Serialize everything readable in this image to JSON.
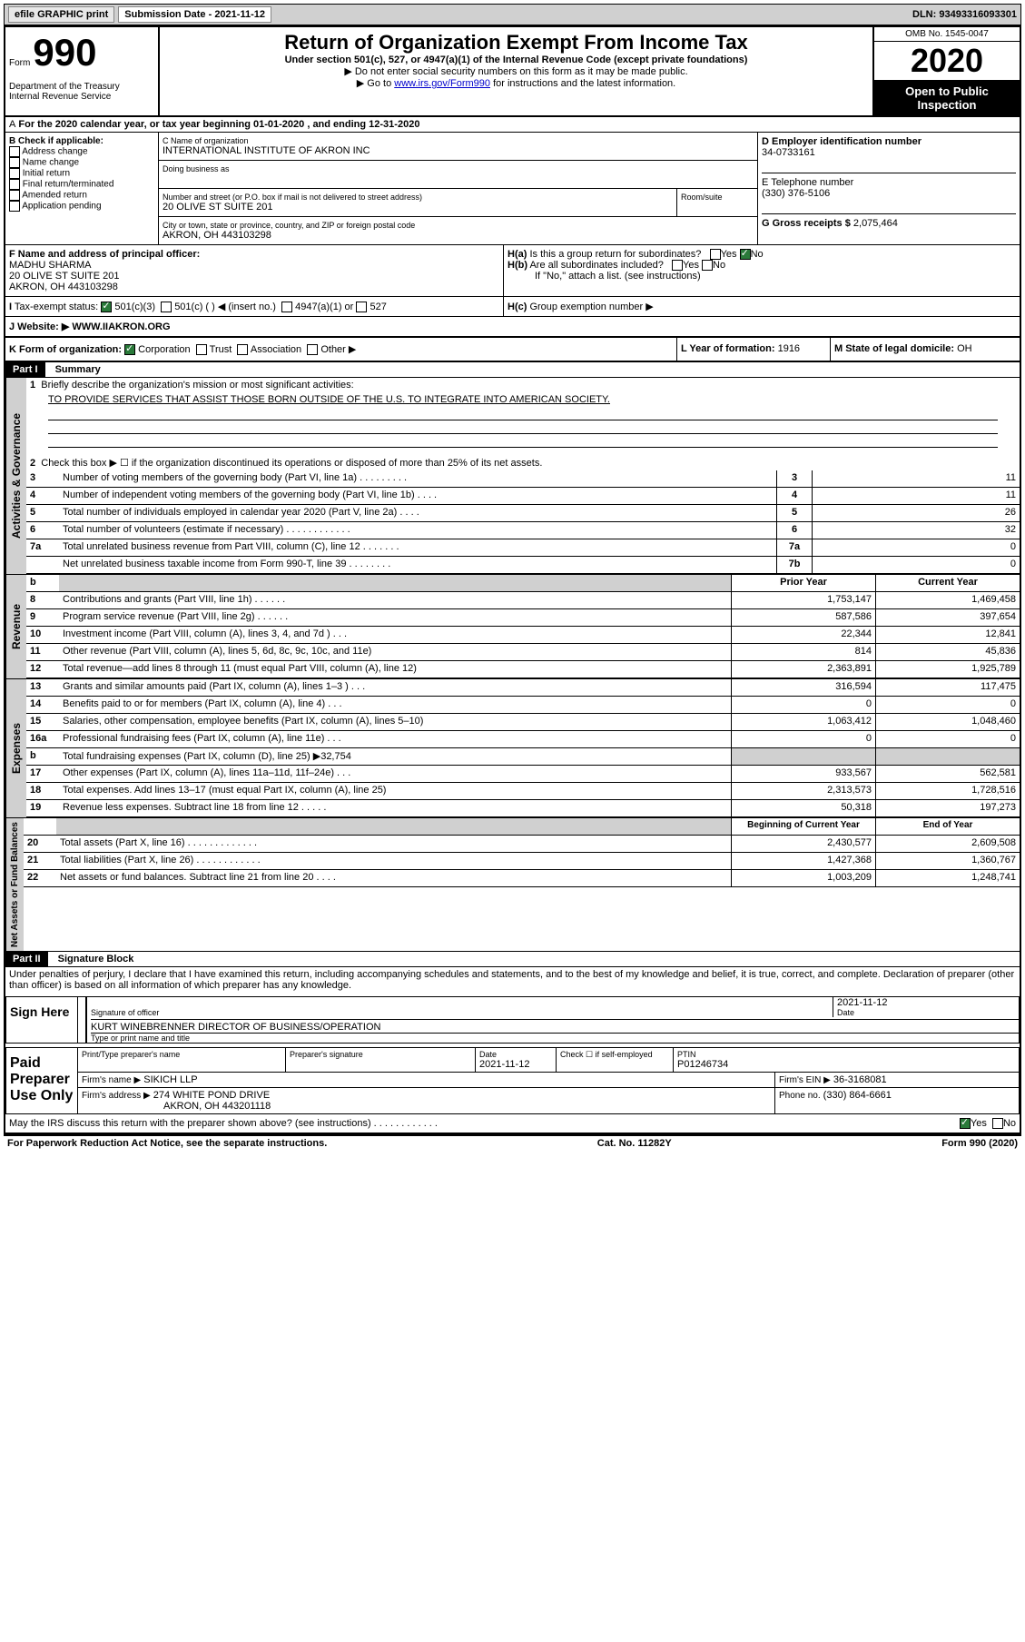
{
  "top_bar": {
    "efile": "efile GRAPHIC print",
    "submission_label": "Submission Date - 2021-11-12",
    "dln": "DLN: 93493316093301"
  },
  "header": {
    "form_label": "Form",
    "form_number": "990",
    "dept": "Department of the Treasury\nInternal Revenue Service",
    "title": "Return of Organization Exempt From Income Tax",
    "subtitle": "Under section 501(c), 527, or 4947(a)(1) of the Internal Revenue Code (except private foundations)",
    "note1": "▶ Do not enter social security numbers on this form as it may be made public.",
    "note2_prefix": "▶ Go to ",
    "note2_link": "www.irs.gov/Form990",
    "note2_suffix": " for instructions and the latest information.",
    "omb": "OMB No. 1545-0047",
    "year": "2020",
    "open": "Open to Public Inspection"
  },
  "period": "For the 2020 calendar year, or tax year beginning 01-01-2020    , and ending 12-31-2020",
  "section_b": {
    "title": "B Check if applicable:",
    "items": [
      "Address change",
      "Name change",
      "Initial return",
      "Final return/terminated",
      "Amended return",
      "Application pending"
    ]
  },
  "section_c": {
    "name_label": "C Name of organization",
    "name": "INTERNATIONAL INSTITUTE OF AKRON INC",
    "dba_label": "Doing business as",
    "street_label": "Number and street (or P.O. box if mail is not delivered to street address)",
    "street": "20 OLIVE ST SUITE 201",
    "room_label": "Room/suite",
    "city_label": "City or town, state or province, country, and ZIP or foreign postal code",
    "city": "AKRON, OH  443103298"
  },
  "section_d": {
    "label": "D Employer identification number",
    "value": "34-0733161"
  },
  "section_e": {
    "label": "E Telephone number",
    "value": "(330) 376-5106"
  },
  "section_g": {
    "label": "G Gross receipts $",
    "value": "2,075,464"
  },
  "section_f": {
    "label": "F Name and address of principal officer:",
    "name": "MADHU SHARMA",
    "addr1": "20 OLIVE ST SUITE 201",
    "addr2": "AKRON, OH  443103298"
  },
  "section_h": {
    "ha": "Is this a group return for subordinates?",
    "hb": "Are all subordinates included?",
    "hc_note": "If \"No,\" attach a list. (see instructions)",
    "hc": "Group exemption number ▶"
  },
  "section_i": {
    "label": "Tax-exempt status:",
    "opt1": "501(c)(3)",
    "opt2": "501(c) (   ) ◀ (insert no.)",
    "opt3": "4947(a)(1) or",
    "opt4": "527"
  },
  "section_j": {
    "label": "J   Website: ▶",
    "value": "WWW.IIAKRON.ORG"
  },
  "section_k": {
    "label": "K Form of organization:",
    "opts": [
      "Corporation",
      "Trust",
      "Association",
      "Other ▶"
    ]
  },
  "section_l": {
    "label": "L Year of formation:",
    "value": "1916"
  },
  "section_m": {
    "label": "M State of legal domicile:",
    "value": "OH"
  },
  "part1": {
    "header": "Part I",
    "title": "Summary",
    "vlabel": "Activities & Governance",
    "line1": "Briefly describe the organization's mission or most significant activities:",
    "mission": "TO PROVIDE SERVICES THAT ASSIST THOSE BORN OUTSIDE OF THE U.S. TO INTEGRATE INTO AMERICAN SOCIETY.",
    "line2": "Check this box ▶ ☐ if the organization discontinued its operations or disposed of more than 25% of its net assets.",
    "rows_gov": [
      {
        "n": "3",
        "label": "Number of voting members of the governing body (Part VI, line 1a)  .  .  .  .  .  .  .  .  .",
        "box": "3",
        "val": "11"
      },
      {
        "n": "4",
        "label": "Number of independent voting members of the governing body (Part VI, line 1b)  .  .  .  .",
        "box": "4",
        "val": "11"
      },
      {
        "n": "5",
        "label": "Total number of individuals employed in calendar year 2020 (Part V, line 2a)  .  .  .  .",
        "box": "5",
        "val": "26"
      },
      {
        "n": "6",
        "label": "Total number of volunteers (estimate if necessary)  .  .  .  .  .  .  .  .  .  .  .  .",
        "box": "6",
        "val": "32"
      },
      {
        "n": "7a",
        "label": "Total unrelated business revenue from Part VIII, column (C), line 12  .  .  .  .  .  .  .",
        "box": "7a",
        "val": "0"
      },
      {
        "n": "",
        "label": "Net unrelated business taxable income from Form 990-T, line 39  .  .  .  .  .  .  .  .",
        "box": "7b",
        "val": "0"
      }
    ],
    "col_headers": {
      "b": "b",
      "prior": "Prior Year",
      "current": "Current Year"
    },
    "revenue_label": "Revenue",
    "revenue_rows": [
      {
        "n": "8",
        "label": "Contributions and grants (Part VIII, line 1h)  .  .  .  .  .  .",
        "prior": "1,753,147",
        "current": "1,469,458"
      },
      {
        "n": "9",
        "label": "Program service revenue (Part VIII, line 2g)  .  .  .  .  .  .",
        "prior": "587,586",
        "current": "397,654"
      },
      {
        "n": "10",
        "label": "Investment income (Part VIII, column (A), lines 3, 4, and 7d )  .  .  .",
        "prior": "22,344",
        "current": "12,841"
      },
      {
        "n": "11",
        "label": "Other revenue (Part VIII, column (A), lines 5, 6d, 8c, 9c, 10c, and 11e)",
        "prior": "814",
        "current": "45,836"
      },
      {
        "n": "12",
        "label": "Total revenue—add lines 8 through 11 (must equal Part VIII, column (A), line 12)",
        "prior": "2,363,891",
        "current": "1,925,789"
      }
    ],
    "expenses_label": "Expenses",
    "expenses_rows": [
      {
        "n": "13",
        "label": "Grants and similar amounts paid (Part IX, column (A), lines 1–3 )  .  .  .",
        "prior": "316,594",
        "current": "117,475"
      },
      {
        "n": "14",
        "label": "Benefits paid to or for members (Part IX, column (A), line 4)  .  .  .",
        "prior": "0",
        "current": "0"
      },
      {
        "n": "15",
        "label": "Salaries, other compensation, employee benefits (Part IX, column (A), lines 5–10)",
        "prior": "1,063,412",
        "current": "1,048,460"
      },
      {
        "n": "16a",
        "label": "Professional fundraising fees (Part IX, column (A), line 11e)  .  .  .",
        "prior": "0",
        "current": "0"
      },
      {
        "n": "b",
        "label": "Total fundraising expenses (Part IX, column (D), line 25) ▶32,754",
        "prior": "",
        "current": "",
        "grey": true
      },
      {
        "n": "17",
        "label": "Other expenses (Part IX, column (A), lines 11a–11d, 11f–24e)  .  .  .",
        "prior": "933,567",
        "current": "562,581"
      },
      {
        "n": "18",
        "label": "Total expenses. Add lines 13–17 (must equal Part IX, column (A), line 25)",
        "prior": "2,313,573",
        "current": "1,728,516"
      },
      {
        "n": "19",
        "label": "Revenue less expenses. Subtract line 18 from line 12  .  .  .  .  .",
        "prior": "50,318",
        "current": "197,273"
      }
    ],
    "net_label": "Net Assets or Fund Balances",
    "net_headers": {
      "begin": "Beginning of Current Year",
      "end": "End of Year"
    },
    "net_rows": [
      {
        "n": "20",
        "label": "Total assets (Part X, line 16)  .  .  .  .  .  .  .  .  .  .  .  .  .",
        "prior": "2,430,577",
        "current": "2,609,508"
      },
      {
        "n": "21",
        "label": "Total liabilities (Part X, line 26)  .  .  .  .  .  .  .  .  .  .  .  .",
        "prior": "1,427,368",
        "current": "1,360,767"
      },
      {
        "n": "22",
        "label": "Net assets or fund balances. Subtract line 21 from line 20  .  .  .  .",
        "prior": "1,003,209",
        "current": "1,248,741"
      }
    ]
  },
  "part2": {
    "header": "Part II",
    "title": "Signature Block",
    "declaration": "Under penalties of perjury, I declare that I have examined this return, including accompanying schedules and statements, and to the best of my knowledge and belief, it is true, correct, and complete. Declaration of preparer (other than officer) is based on all information of which preparer has any knowledge."
  },
  "sign_here": {
    "label": "Sign Here",
    "sig_label": "Signature of officer",
    "date": "2021-11-12",
    "date_label": "Date",
    "name": "KURT WINEBRENNER  DIRECTOR OF BUSINESS/OPERATION",
    "name_label": "Type or print name and title"
  },
  "preparer": {
    "label": "Paid Preparer Use Only",
    "h1": "Print/Type preparer's name",
    "h2": "Preparer's signature",
    "h3": "Date",
    "date": "2021-11-12",
    "h4": "Check ☐ if self-employed",
    "h5": "PTIN",
    "ptin": "P01246734",
    "firm_name_label": "Firm's name     ▶",
    "firm_name": "SIKICH LLP",
    "firm_ein_label": "Firm's EIN ▶",
    "firm_ein": "36-3168081",
    "firm_addr_label": "Firm's address ▶",
    "firm_addr1": "274 WHITE POND DRIVE",
    "firm_addr2": "AKRON, OH  443201118",
    "phone_label": "Phone no.",
    "phone": "(330) 864-6661"
  },
  "discuss": "May the IRS discuss this return with the preparer shown above? (see instructions)  .  .  .  .  .  .  .  .  .  .  .  .",
  "footer": {
    "left": "For Paperwork Reduction Act Notice, see the separate instructions.",
    "mid": "Cat. No. 11282Y",
    "right": "Form 990 (2020)"
  }
}
